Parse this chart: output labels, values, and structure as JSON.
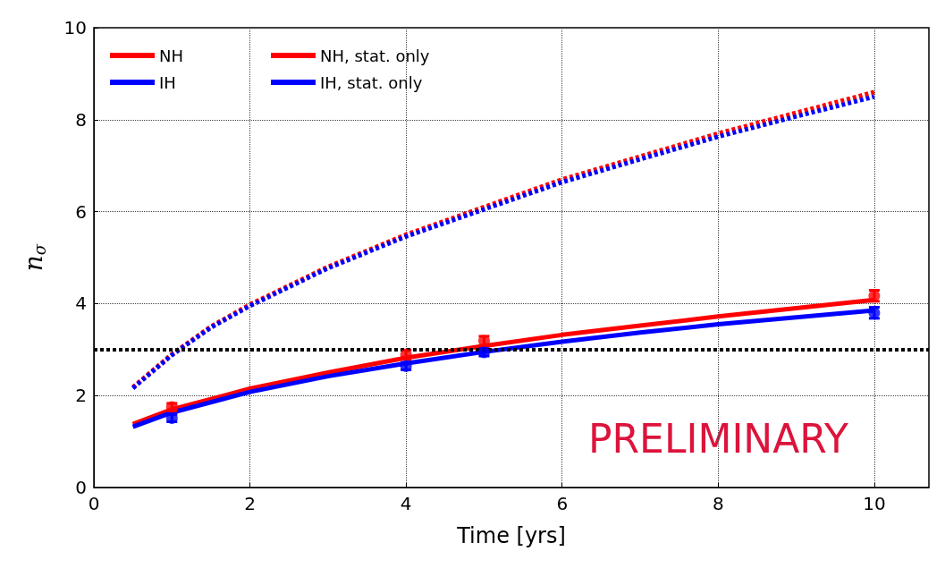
{
  "chart_data": {
    "type": "line",
    "xlabel": "Time [yrs]",
    "ylabel": "n$_{σ}$",
    "xlim": [
      0,
      10.7
    ],
    "ylim": [
      0,
      10
    ],
    "xticks": [
      0,
      2,
      4,
      6,
      8,
      10
    ],
    "yticks": [
      0,
      2,
      4,
      6,
      8,
      10
    ],
    "grid": true,
    "legend": "top left",
    "marker": "none",
    "series": [
      {
        "name": "NH",
        "color": "#ff0000",
        "line_style": "solid",
        "x": [
          0.5,
          1,
          2,
          3,
          4,
          5,
          6,
          7,
          8,
          9,
          10
        ],
        "values": [
          1.38,
          1.7,
          2.15,
          2.5,
          2.82,
          3.08,
          3.32,
          3.52,
          3.72,
          3.9,
          4.08
        ]
      },
      {
        "name": "IH",
        "color": "#0000ff",
        "line_style": "solid",
        "x": [
          0.5,
          1,
          2,
          3,
          4,
          5,
          6,
          7,
          8,
          9,
          10
        ],
        "values": [
          1.32,
          1.63,
          2.08,
          2.42,
          2.7,
          2.95,
          3.17,
          3.37,
          3.55,
          3.7,
          3.85
        ]
      },
      {
        "name": "NH, stat. only",
        "color": "#ff0000",
        "line_style": "dashed",
        "x": [
          0.5,
          1,
          1.5,
          2,
          3,
          4,
          5,
          6,
          7,
          8,
          9,
          10
        ],
        "values": [
          2.18,
          2.9,
          3.5,
          3.98,
          4.8,
          5.5,
          6.1,
          6.7,
          7.2,
          7.7,
          8.15,
          8.6
        ]
      },
      {
        "name": "IH, stat. only",
        "color": "#0000ff",
        "line_style": "dashed",
        "x": [
          0.5,
          1,
          1.5,
          2,
          3,
          4,
          5,
          6,
          7,
          8,
          9,
          10
        ],
        "values": [
          2.16,
          2.88,
          3.48,
          3.95,
          4.77,
          5.46,
          6.05,
          6.64,
          7.14,
          7.63,
          8.07,
          8.5
        ]
      },
      {
        "type": "scatter",
        "marker": "circle",
        "color": "#ff0000",
        "x": [
          1,
          4,
          5,
          10
        ],
        "values": [
          1.75,
          2.89,
          3.19,
          4.17
        ],
        "errors": [
          0.08,
          0.1,
          0.1,
          0.12
        ]
      },
      {
        "type": "scatter",
        "marker": "circle",
        "color": "#0000ff",
        "x": [
          1,
          4,
          5,
          10
        ],
        "values": [
          1.51,
          2.64,
          2.94,
          3.8
        ],
        "errors": [
          0.08,
          0.08,
          0.08,
          0.12
        ]
      }
    ],
    "ref_lines": [
      {
        "axis": "y",
        "value": 3,
        "color": "#000000",
        "line_style": "dashed"
      }
    ],
    "annotations": [
      "PRELIMINARY"
    ]
  }
}
